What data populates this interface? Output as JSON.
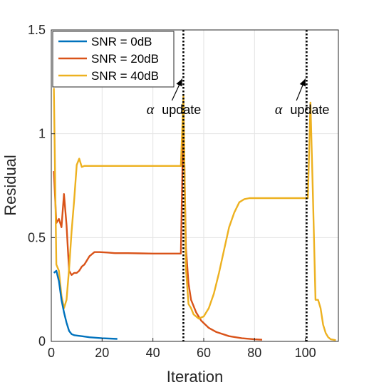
{
  "chart_data": {
    "type": "line",
    "xlabel": "Iteration",
    "ylabel": "Residual",
    "xlim": [
      0,
      113
    ],
    "ylim": [
      0,
      1.5
    ],
    "xticks": [
      0,
      20,
      40,
      60,
      80,
      100
    ],
    "yticks": [
      0,
      0.5,
      1,
      1.5
    ],
    "ytick_labels": [
      "0",
      "0.5",
      "1",
      "1.5"
    ],
    "grid": true,
    "legend_position": "top-left",
    "series": [
      {
        "name": "SNR = 0dB",
        "color": "#0072bd",
        "x": [
          1,
          2,
          3,
          4,
          5,
          6,
          7,
          8,
          9,
          10,
          12,
          15,
          20,
          26
        ],
        "y": [
          0.33,
          0.34,
          0.29,
          0.2,
          0.14,
          0.09,
          0.05,
          0.035,
          0.03,
          0.028,
          0.025,
          0.02,
          0.015,
          0.012
        ]
      },
      {
        "name": "SNR = 20dB",
        "color": "#d95319",
        "x": [
          1,
          2,
          3,
          4,
          5,
          6,
          7,
          8,
          9,
          10,
          11,
          12,
          13,
          15,
          17,
          19,
          22,
          25,
          30,
          35,
          40,
          45,
          51,
          52,
          53,
          54,
          55,
          57,
          59,
          62,
          65,
          70,
          75,
          80,
          83
        ],
        "y": [
          0.82,
          0.57,
          0.59,
          0.55,
          0.71,
          0.56,
          0.34,
          0.32,
          0.33,
          0.33,
          0.34,
          0.36,
          0.37,
          0.41,
          0.43,
          0.43,
          0.428,
          0.425,
          0.425,
          0.424,
          0.423,
          0.423,
          0.423,
          1.1,
          0.45,
          0.28,
          0.2,
          0.14,
          0.1,
          0.065,
          0.045,
          0.025,
          0.015,
          0.01,
          0.008
        ]
      },
      {
        "name": "SNR = 40dB",
        "color": "#edb120",
        "x": [
          1,
          2,
          3,
          4,
          5,
          6,
          7,
          8,
          9,
          10,
          11,
          12,
          13,
          15,
          20,
          30,
          40,
          51,
          52,
          53,
          54,
          55,
          56,
          58,
          60,
          62,
          64,
          66,
          68,
          70,
          72,
          74,
          76,
          78,
          80,
          85,
          90,
          95,
          100,
          101,
          102,
          103,
          104,
          105,
          106,
          107,
          108,
          109,
          110,
          111,
          112
        ],
        "y": [
          1.22,
          0.37,
          0.34,
          0.22,
          0.16,
          0.2,
          0.35,
          0.53,
          0.68,
          0.85,
          0.88,
          0.84,
          0.845,
          0.845,
          0.845,
          0.845,
          0.845,
          0.845,
          1.18,
          0.35,
          0.18,
          0.16,
          0.13,
          0.11,
          0.12,
          0.16,
          0.23,
          0.33,
          0.44,
          0.55,
          0.62,
          0.67,
          0.685,
          0.69,
          0.69,
          0.69,
          0.69,
          0.69,
          0.69,
          0.69,
          1.15,
          0.7,
          0.2,
          0.2,
          0.16,
          0.08,
          0.04,
          0.02,
          0.01,
          0.008,
          0.006
        ]
      }
    ],
    "vlines": [
      52,
      100.5
    ],
    "annotations": [
      {
        "symbol": "α",
        "text": "update",
        "x": 37.5,
        "y": 1.095,
        "arrow_from": [
          47.5,
          1.16
        ],
        "arrow_to": [
          51.5,
          1.265
        ]
      },
      {
        "symbol": "α",
        "text": "update",
        "x": 88,
        "y": 1.095,
        "arrow_from": [
          96.5,
          1.16
        ],
        "arrow_to": [
          100,
          1.265
        ]
      }
    ]
  }
}
